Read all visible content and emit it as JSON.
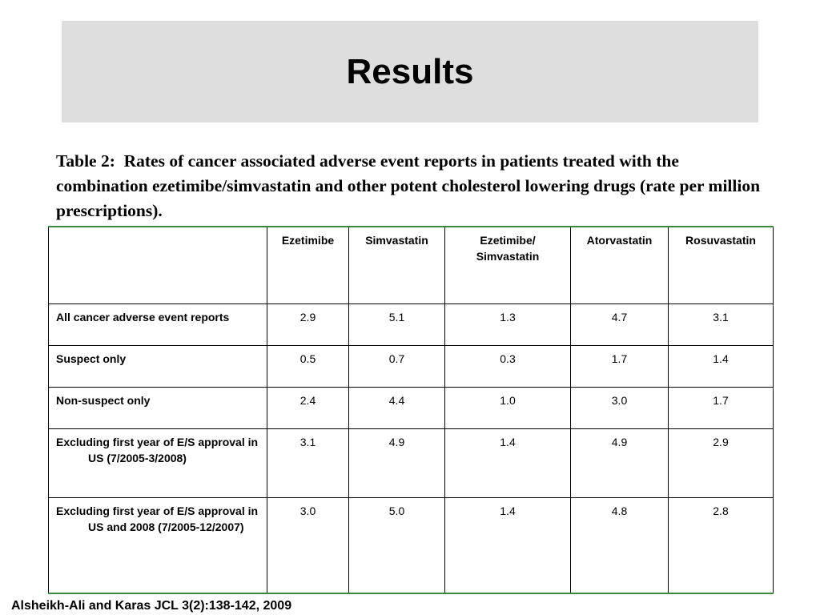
{
  "slide": {
    "title": "Results",
    "caption": "Table 2:  Rates of cancer associated adverse event reports in patients treated with the combination ezetimibe/simvastatin and other potent cholesterol lowering drugs (rate per million prescriptions).",
    "citation": "Alsheikh-Ali and Karas JCL 3(2):138-142, 2009"
  },
  "table": {
    "columns": [
      "",
      "Ezetimibe",
      "Simvastatin",
      "Ezetimibe/ Simvastatin",
      "Atorvastatin",
      "Rosuvastatin"
    ],
    "rows": [
      {
        "label": "All cancer adverse event reports",
        "values": [
          "2.9",
          "5.1",
          "1.3",
          "4.7",
          "3.1"
        ]
      },
      {
        "label": "Suspect only",
        "values": [
          "0.5",
          "0.7",
          "0.3",
          "1.7",
          "1.4"
        ]
      },
      {
        "label": "Non-suspect only",
        "values": [
          "2.4",
          "4.4",
          "1.0",
          "3.0",
          "1.7"
        ]
      },
      {
        "label": "Excluding first year of E/S approval in US (7/2005-3/2008)",
        "values": [
          "3.1",
          "4.9",
          "1.4",
          "4.9",
          "2.9"
        ]
      },
      {
        "label": "Excluding first year of E/S approval in US and 2008 (7/2005-12/2007)",
        "values": [
          "3.0",
          "5.0",
          "1.4",
          "4.8",
          "2.8"
        ]
      }
    ]
  }
}
